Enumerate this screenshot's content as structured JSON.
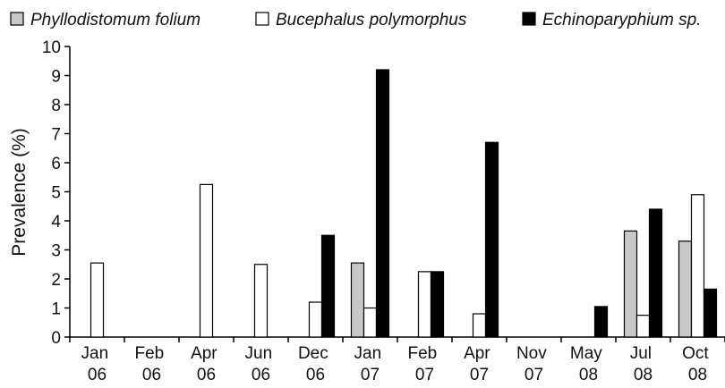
{
  "chart_data": {
    "type": "bar",
    "y_label": "Prevalence (%)",
    "categories": [
      "Jan 06",
      "Feb 06",
      "Apr 06",
      "Jun 06",
      "Dec 06",
      "Jan 07",
      "Feb 07",
      "Apr 07",
      "Nov 07",
      "May 08",
      "Jul 08",
      "Oct 08"
    ],
    "series": [
      {
        "name": "Phyllodistomum folium",
        "color": "#c8c8c8",
        "values": [
          0,
          0,
          0,
          0,
          0,
          2.55,
          0,
          0,
          0,
          0,
          3.65,
          3.3
        ]
      },
      {
        "name": "Bucephalus polymorphus",
        "color": "#ffffff",
        "values": [
          2.55,
          0,
          5.25,
          2.5,
          1.2,
          1.0,
          2.25,
          0.8,
          0,
          0,
          0.75,
          4.9
        ]
      },
      {
        "name": "Echinoparyphium sp.",
        "color": "#000000",
        "values": [
          0,
          0,
          0,
          0,
          3.5,
          9.2,
          2.25,
          6.7,
          0,
          1.05,
          4.4,
          1.65
        ]
      }
    ],
    "ylim": [
      0,
      10
    ],
    "yticks": [
      0,
      1,
      2,
      3,
      4,
      5,
      6,
      7,
      8,
      9,
      10
    ],
    "grid": false,
    "legend": "top"
  }
}
